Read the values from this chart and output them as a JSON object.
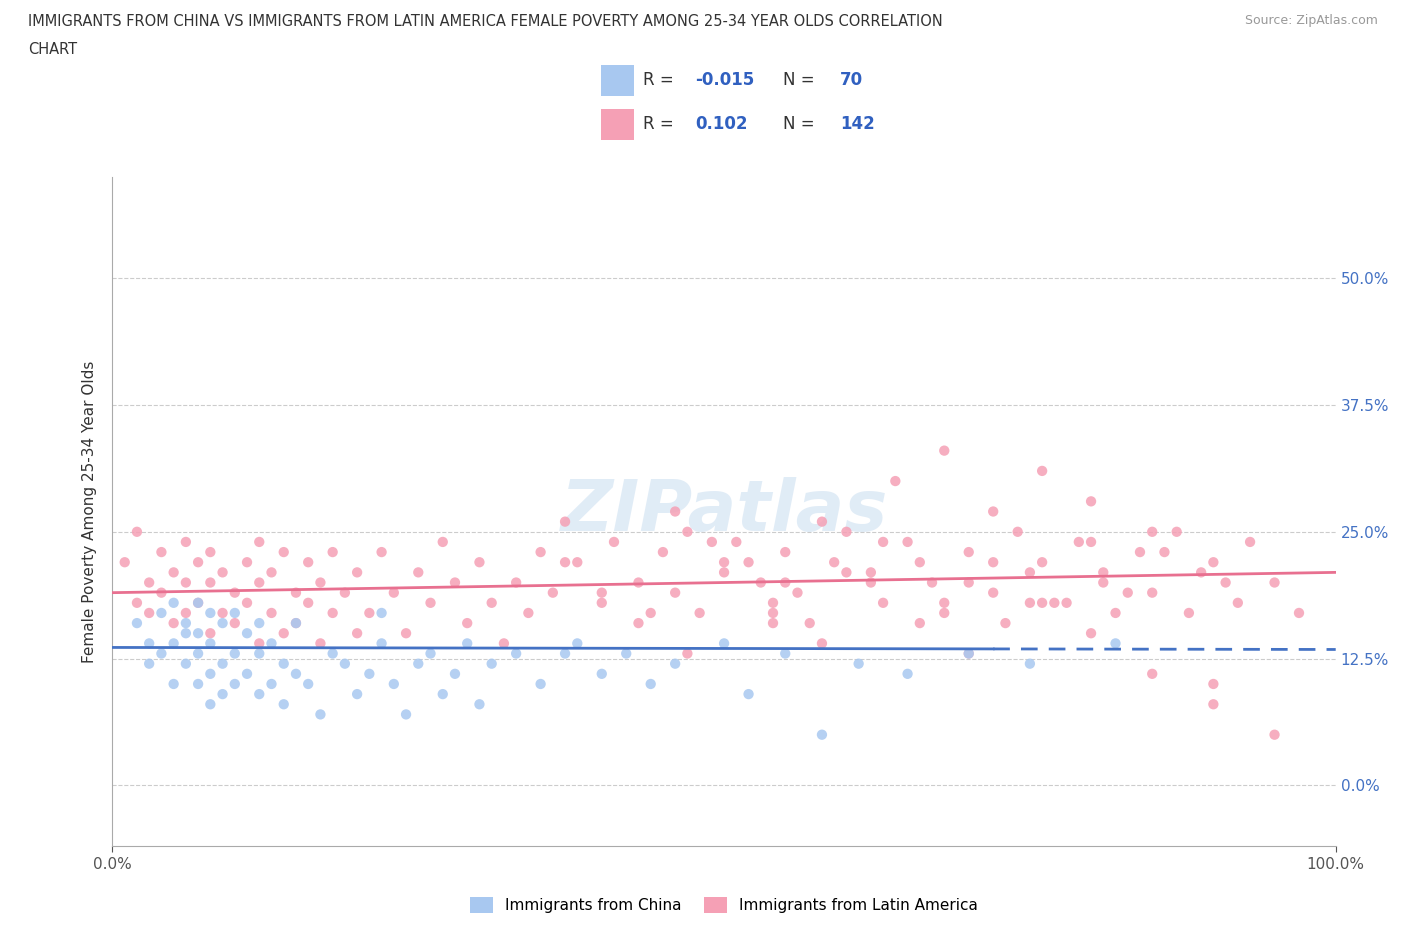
{
  "title_line1": "IMMIGRANTS FROM CHINA VS IMMIGRANTS FROM LATIN AMERICA FEMALE POVERTY AMONG 25-34 YEAR OLDS CORRELATION",
  "title_line2": "CHART",
  "source": "Source: ZipAtlas.com",
  "ylabel": "Female Poverty Among 25-34 Year Olds",
  "xlim": [
    0.0,
    1.0
  ],
  "ylim": [
    -0.06,
    0.6
  ],
  "yticks": [
    0.0,
    0.125,
    0.25,
    0.375,
    0.5
  ],
  "ytick_labels": [
    "0.0%",
    "12.5%",
    "25.0%",
    "37.5%",
    "50.0%"
  ],
  "xticks": [
    0.0,
    1.0
  ],
  "xtick_labels": [
    "0.0%",
    "100.0%"
  ],
  "china_R": -0.015,
  "china_N": 70,
  "latin_R": 0.102,
  "latin_N": 142,
  "china_color": "#a8c8f0",
  "latin_color": "#f5a0b5",
  "china_line_color": "#4472c4",
  "latin_line_color": "#e87090",
  "watermark": "ZIPatlas",
  "legend_label_china": "Immigrants from China",
  "legend_label_latin": "Immigrants from Latin America",
  "china_line_y0": 0.136,
  "china_line_y1": 0.134,
  "latin_line_y0": 0.19,
  "latin_line_y1": 0.21,
  "china_x": [
    0.02,
    0.03,
    0.03,
    0.04,
    0.04,
    0.05,
    0.05,
    0.05,
    0.06,
    0.06,
    0.06,
    0.07,
    0.07,
    0.07,
    0.07,
    0.08,
    0.08,
    0.08,
    0.08,
    0.09,
    0.09,
    0.09,
    0.1,
    0.1,
    0.1,
    0.11,
    0.11,
    0.12,
    0.12,
    0.12,
    0.13,
    0.13,
    0.14,
    0.14,
    0.15,
    0.15,
    0.16,
    0.17,
    0.18,
    0.19,
    0.2,
    0.21,
    0.22,
    0.22,
    0.23,
    0.24,
    0.25,
    0.26,
    0.27,
    0.28,
    0.29,
    0.3,
    0.31,
    0.33,
    0.35,
    0.37,
    0.38,
    0.4,
    0.42,
    0.44,
    0.46,
    0.5,
    0.52,
    0.55,
    0.58,
    0.61,
    0.65,
    0.7,
    0.75,
    0.82
  ],
  "china_y": [
    0.16,
    0.12,
    0.14,
    0.17,
    0.13,
    0.18,
    0.14,
    0.1,
    0.16,
    0.12,
    0.15,
    0.1,
    0.13,
    0.15,
    0.18,
    0.08,
    0.11,
    0.14,
    0.17,
    0.09,
    0.12,
    0.16,
    0.1,
    0.13,
    0.17,
    0.11,
    0.15,
    0.09,
    0.13,
    0.16,
    0.1,
    0.14,
    0.08,
    0.12,
    0.11,
    0.16,
    0.1,
    0.07,
    0.13,
    0.12,
    0.09,
    0.11,
    0.14,
    0.17,
    0.1,
    0.07,
    0.12,
    0.13,
    0.09,
    0.11,
    0.14,
    0.08,
    0.12,
    0.13,
    0.1,
    0.13,
    0.14,
    0.11,
    0.13,
    0.1,
    0.12,
    0.14,
    0.09,
    0.13,
    0.05,
    0.12,
    0.11,
    0.13,
    0.12,
    0.14
  ],
  "latin_x": [
    0.01,
    0.02,
    0.02,
    0.03,
    0.03,
    0.04,
    0.04,
    0.05,
    0.05,
    0.06,
    0.06,
    0.06,
    0.07,
    0.07,
    0.08,
    0.08,
    0.08,
    0.09,
    0.09,
    0.1,
    0.1,
    0.11,
    0.11,
    0.12,
    0.12,
    0.12,
    0.13,
    0.13,
    0.14,
    0.14,
    0.15,
    0.15,
    0.16,
    0.16,
    0.17,
    0.17,
    0.18,
    0.18,
    0.19,
    0.2,
    0.2,
    0.21,
    0.22,
    0.23,
    0.24,
    0.25,
    0.26,
    0.27,
    0.28,
    0.29,
    0.3,
    0.31,
    0.32,
    0.33,
    0.34,
    0.35,
    0.36,
    0.37,
    0.38,
    0.4,
    0.41,
    0.43,
    0.44,
    0.45,
    0.46,
    0.47,
    0.48,
    0.5,
    0.51,
    0.53,
    0.54,
    0.55,
    0.56,
    0.58,
    0.59,
    0.6,
    0.62,
    0.63,
    0.65,
    0.67,
    0.68,
    0.7,
    0.72,
    0.74,
    0.75,
    0.77,
    0.79,
    0.81,
    0.82,
    0.84,
    0.85,
    0.87,
    0.89,
    0.9,
    0.92,
    0.93,
    0.95,
    0.97,
    0.54,
    0.6,
    0.63,
    0.66,
    0.68,
    0.7,
    0.73,
    0.76,
    0.78,
    0.81,
    0.83,
    0.86,
    0.88,
    0.91,
    0.46,
    0.49,
    0.52,
    0.55,
    0.57,
    0.72,
    0.76,
    0.8,
    0.64,
    0.68,
    0.72,
    0.76,
    0.8,
    0.85,
    0.9,
    0.37,
    0.4,
    0.43,
    0.47,
    0.5,
    0.54,
    0.58,
    0.62,
    0.66,
    0.7,
    0.75,
    0.8,
    0.85,
    0.9,
    0.95
  ],
  "latin_y": [
    0.22,
    0.18,
    0.25,
    0.2,
    0.17,
    0.23,
    0.19,
    0.21,
    0.16,
    0.24,
    0.2,
    0.17,
    0.22,
    0.18,
    0.15,
    0.2,
    0.23,
    0.17,
    0.21,
    0.19,
    0.16,
    0.22,
    0.18,
    0.14,
    0.2,
    0.24,
    0.17,
    0.21,
    0.15,
    0.23,
    0.19,
    0.16,
    0.22,
    0.18,
    0.14,
    0.2,
    0.17,
    0.23,
    0.19,
    0.15,
    0.21,
    0.17,
    0.23,
    0.19,
    0.15,
    0.21,
    0.18,
    0.24,
    0.2,
    0.16,
    0.22,
    0.18,
    0.14,
    0.2,
    0.17,
    0.23,
    0.19,
    0.26,
    0.22,
    0.18,
    0.24,
    0.2,
    0.17,
    0.23,
    0.19,
    0.25,
    0.17,
    0.21,
    0.24,
    0.2,
    0.17,
    0.23,
    0.19,
    0.26,
    0.22,
    0.25,
    0.21,
    0.18,
    0.24,
    0.2,
    0.17,
    0.23,
    0.19,
    0.25,
    0.21,
    0.18,
    0.24,
    0.2,
    0.17,
    0.23,
    0.19,
    0.25,
    0.21,
    0.22,
    0.18,
    0.24,
    0.2,
    0.17,
    0.16,
    0.21,
    0.24,
    0.22,
    0.18,
    0.2,
    0.16,
    0.22,
    0.18,
    0.21,
    0.19,
    0.23,
    0.17,
    0.2,
    0.27,
    0.24,
    0.22,
    0.2,
    0.16,
    0.22,
    0.18,
    0.24,
    0.3,
    0.33,
    0.27,
    0.31,
    0.28,
    0.25,
    0.1,
    0.22,
    0.19,
    0.16,
    0.13,
    0.22,
    0.18,
    0.14,
    0.2,
    0.16,
    0.13,
    0.18,
    0.15,
    0.11,
    0.08,
    0.05
  ]
}
